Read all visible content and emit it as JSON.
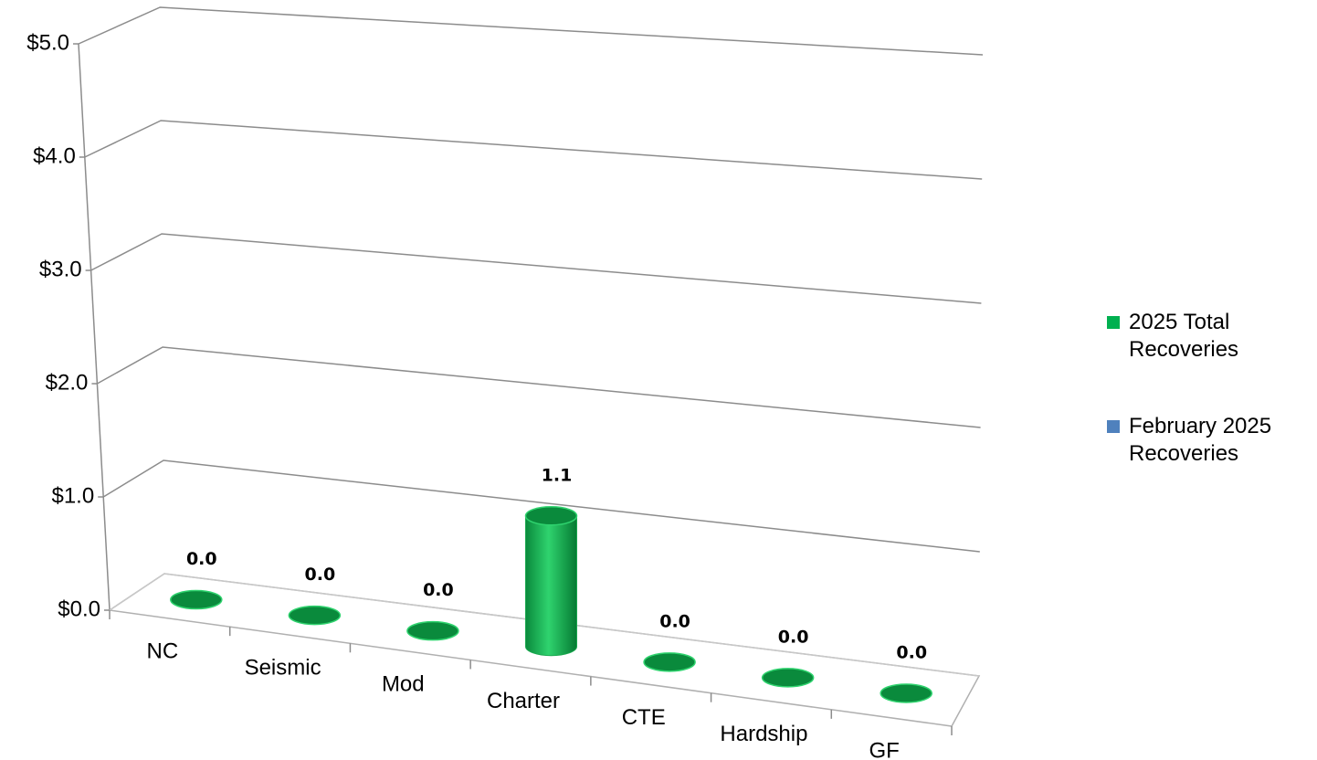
{
  "chart_data": {
    "type": "bar3d",
    "categories": [
      "NC",
      "Seismic",
      "Mod",
      "Charter",
      "CTE",
      "Hardship",
      "GF"
    ],
    "series": [
      {
        "name": "2025 Total Recoveries",
        "color": "#00b050",
        "values": [
          0.0,
          0.0,
          0.0,
          1.1,
          0.0,
          0.0,
          0.0
        ],
        "value_labels": [
          "0.0",
          "0.0",
          "0.0",
          "1.1",
          "0.0",
          "0.0",
          "0.0"
        ]
      },
      {
        "name": "February 2025 Recoveries",
        "color": "#4f81bd",
        "values": [
          null,
          null,
          null,
          null,
          null,
          null,
          null
        ]
      }
    ],
    "ylim": [
      0,
      5
    ],
    "yticks": [
      {
        "value": 0,
        "label": "$0.0"
      },
      {
        "value": 1,
        "label": "$1.0"
      },
      {
        "value": 2,
        "label": "$2.0"
      },
      {
        "value": 3,
        "label": "$3.0"
      },
      {
        "value": 4,
        "label": "$4.0"
      },
      {
        "value": 5,
        "label": "$5.0"
      }
    ],
    "grid": true,
    "legend": "right"
  }
}
